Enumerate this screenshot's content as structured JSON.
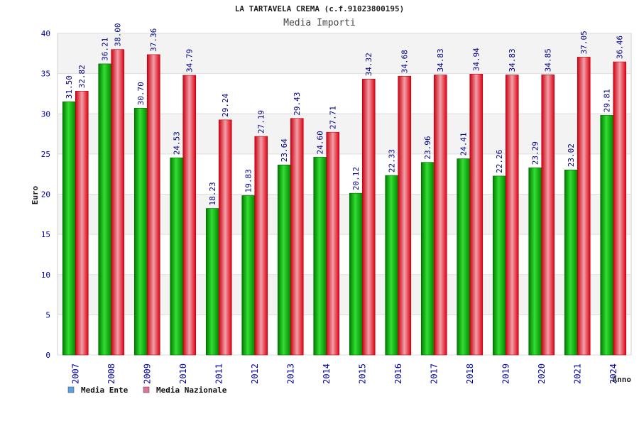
{
  "chart_data": {
    "type": "bar",
    "title": "LA TARTAVELA CREMA (c.f.91023800195)",
    "subtitle": "Media Importi",
    "xlabel": "Anno",
    "ylabel": "Euro",
    "ylim": [
      0,
      40
    ],
    "yticks": [
      "0",
      "5",
      "10",
      "15",
      "20",
      "25",
      "30",
      "35",
      "40"
    ],
    "grid": true,
    "legend_position": "bottom-left",
    "categories": [
      "2007",
      "2008",
      "2009",
      "2010",
      "2011",
      "2012",
      "2013",
      "2014",
      "2015",
      "2016",
      "2017",
      "2018",
      "2019",
      "2020",
      "2021",
      "2024"
    ],
    "series": [
      {
        "name": "Media Ente",
        "color": "#00aa00",
        "legend_color": "#5aa0e6",
        "values": [
          31.5,
          36.21,
          30.7,
          24.53,
          18.23,
          19.83,
          23.64,
          24.6,
          20.12,
          22.33,
          23.96,
          24.41,
          22.26,
          23.29,
          23.02,
          29.81
        ],
        "labels": [
          "31.50",
          "36.21",
          "30.70",
          "24.53",
          "18.23",
          "19.83",
          "23.64",
          "24.60",
          "20.12",
          "22.33",
          "23.96",
          "24.41",
          "22.26",
          "23.29",
          "23.02",
          "29.81"
        ]
      },
      {
        "name": "Media Nazionale",
        "color": "#dd1122",
        "legend_color": "#e0709a",
        "values": [
          32.82,
          38.0,
          37.36,
          34.79,
          29.24,
          27.19,
          29.43,
          27.71,
          34.32,
          34.68,
          34.83,
          34.94,
          34.83,
          34.85,
          37.05,
          36.46
        ],
        "labels": [
          "32.82",
          "38.00",
          "37.36",
          "34.79",
          "29.24",
          "27.19",
          "29.43",
          "27.71",
          "34.32",
          "34.68",
          "34.83",
          "34.94",
          "34.83",
          "34.85",
          "37.05",
          "36.46"
        ]
      }
    ]
  }
}
